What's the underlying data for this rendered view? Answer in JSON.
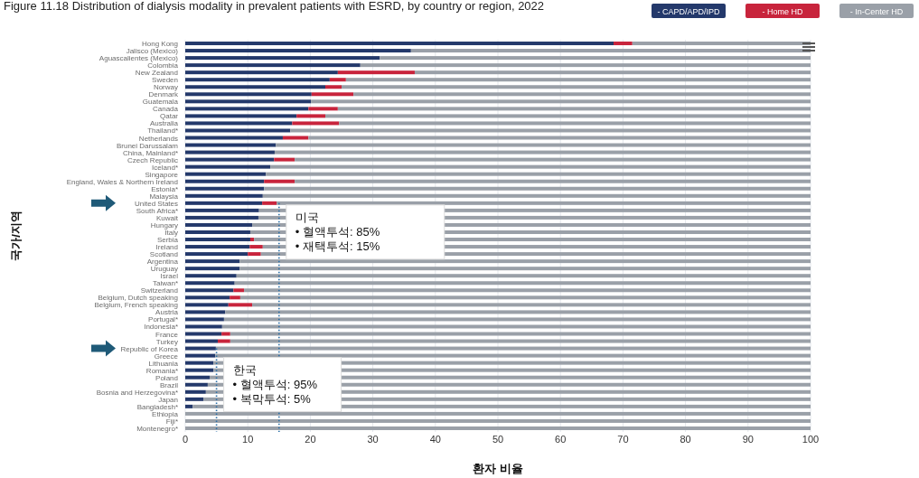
{
  "chart_data": {
    "type": "bar",
    "orientation": "horizontal",
    "stacked": true,
    "title": "Figure 11.18  Distribution of dialysis modality in prevalent patients with ESRD, by country or region, 2022",
    "xlabel": "환자 비율",
    "ylabel": "국가/지역",
    "categories": [
      "Hong Kong",
      "Jalisco (Mexico)",
      "Aguascalientes (Mexico)",
      "Colombia",
      "New Zealand",
      "Sweden",
      "Norway",
      "Denmark",
      "Guatemala",
      "Canada",
      "Qatar",
      "Australia",
      "Thailand*",
      "Netherlands",
      "Brunei Darussalam",
      "China, Mainland*",
      "Czech Republic",
      "Iceland*",
      "Singapore",
      "England, Wales & Northern Ireland",
      "Estonia*",
      "Malaysia",
      "United States",
      "South Africa*",
      "Kuwait",
      "Hungary",
      "Italy",
      "Serbia",
      "Ireland",
      "Scotland",
      "Argentina",
      "Uruguay",
      "Israel",
      "Taiwan*",
      "Switzerland",
      "Belgium, Dutch speaking",
      "Belgium, French speaking",
      "Austria",
      "Portugal*",
      "Indonesia*",
      "France",
      "Turkey",
      "Republic of Korea",
      "Greece",
      "Lithuania",
      "Romania*",
      "Poland",
      "Brazil",
      "Bosnia and Herzegovina*",
      "Japan",
      "Bangladesh*",
      "Ethiopia",
      "Fiji*",
      "Montenegro*"
    ],
    "series": [
      {
        "name": "- CAPD/APD/IPD",
        "color": "#24396b",
        "values": [
          68.5,
          36.1,
          31.1,
          28.0,
          24.4,
          23.1,
          22.4,
          20.2,
          20.1,
          19.7,
          17.8,
          17.1,
          16.8,
          15.6,
          14.5,
          14.3,
          14.2,
          13.6,
          12.9,
          12.6,
          12.6,
          12.4,
          12.3,
          11.8,
          11.7,
          10.7,
          10.4,
          10.4,
          10.3,
          10.0,
          8.7,
          8.7,
          8.2,
          7.9,
          7.7,
          7.1,
          6.9,
          6.4,
          6.2,
          5.9,
          5.8,
          5.2,
          4.9,
          4.8,
          4.5,
          4.5,
          3.9,
          3.6,
          3.3,
          2.9,
          1.2,
          0,
          0,
          0
        ]
      },
      {
        "name": "- Home HD",
        "color": "#c8243c",
        "values": [
          3.0,
          0,
          0,
          0,
          12.3,
          2.6,
          2.6,
          6.7,
          0,
          4.7,
          4.6,
          7.5,
          0,
          4.1,
          0,
          0,
          3.3,
          0,
          0,
          4.9,
          0,
          0,
          2.3,
          0,
          0,
          0,
          0,
          0.6,
          2.1,
          2.1,
          0,
          0,
          0,
          0,
          1.7,
          1.7,
          3.8,
          0,
          0,
          0,
          1.4,
          2.0,
          0,
          0,
          0,
          0,
          0,
          0,
          0,
          0,
          0,
          0,
          0,
          0
        ]
      },
      {
        "name": "- In-Center HD",
        "color": "#9aa0a8",
        "values": [
          28.5,
          63.9,
          68.9,
          72.0,
          63.3,
          74.3,
          75.0,
          73.1,
          79.9,
          75.6,
          77.6,
          75.4,
          83.2,
          80.3,
          85.5,
          85.7,
          82.5,
          86.4,
          87.1,
          82.5,
          87.4,
          87.6,
          85.4,
          88.2,
          88.3,
          89.3,
          89.6,
          89.0,
          87.6,
          87.9,
          91.3,
          91.3,
          91.8,
          92.1,
          90.6,
          91.2,
          89.3,
          93.6,
          93.8,
          94.1,
          92.8,
          92.8,
          95.1,
          95.2,
          95.5,
          95.5,
          96.1,
          96.4,
          96.7,
          97.1,
          98.8,
          100,
          100,
          100
        ]
      }
    ],
    "xlim": [
      0,
      100
    ],
    "xticks": [
      0,
      10,
      20,
      30,
      40,
      50,
      60,
      70,
      80,
      90,
      100
    ],
    "grid": "x",
    "legend": "top right",
    "ref_lines": [
      {
        "axis": "x",
        "value": 15,
        "color": "#2a6fa8",
        "line_style": "dotted"
      },
      {
        "axis": "x",
        "value": 5,
        "color": "#2a6fa8",
        "line_style": "dotted"
      }
    ],
    "annotations": [
      {
        "text": "미국\n• 혈액투석: 85%\n• 재택투석: 15%",
        "x": 15,
        "y": "United States"
      },
      {
        "text": "한국\n• 혈액투석: 95%\n• 복막투석: 5%",
        "x": 5,
        "y": "Republic of Korea"
      }
    ]
  }
}
